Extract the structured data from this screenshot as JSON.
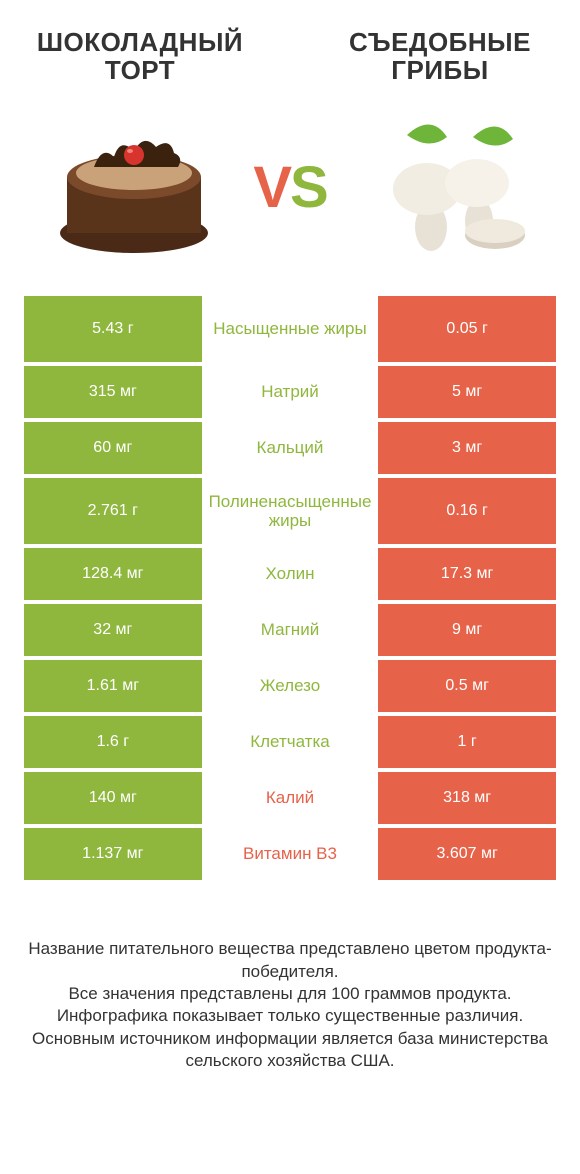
{
  "colors": {
    "green": "#8fb73e",
    "orange": "#e6634a",
    "bg": "#ffffff",
    "text": "#333333"
  },
  "header": {
    "left": "ШОКОЛАДНЫЙ ТОРТ",
    "right": "СЪЕДОБНЫЕ ГРИБЫ",
    "vs_v": "V",
    "vs_s": "S"
  },
  "rows": [
    {
      "left": "5.43 г",
      "label": "Насыщенные жиры",
      "right": "0.05 г",
      "winner": "left",
      "tall": true
    },
    {
      "left": "315 мг",
      "label": "Натрий",
      "right": "5 мг",
      "winner": "left",
      "tall": false
    },
    {
      "left": "60 мг",
      "label": "Кальций",
      "right": "3 мг",
      "winner": "left",
      "tall": false
    },
    {
      "left": "2.761 г",
      "label": "Полиненасыщенные жиры",
      "right": "0.16 г",
      "winner": "left",
      "tall": true
    },
    {
      "left": "128.4 мг",
      "label": "Холин",
      "right": "17.3 мг",
      "winner": "left",
      "tall": false
    },
    {
      "left": "32 мг",
      "label": "Магний",
      "right": "9 мг",
      "winner": "left",
      "tall": false
    },
    {
      "left": "1.61 мг",
      "label": "Железо",
      "right": "0.5 мг",
      "winner": "left",
      "tall": false
    },
    {
      "left": "1.6 г",
      "label": "Клетчатка",
      "right": "1 г",
      "winner": "left",
      "tall": false
    },
    {
      "left": "140 мг",
      "label": "Калий",
      "right": "318 мг",
      "winner": "right",
      "tall": false
    },
    {
      "left": "1.137 мг",
      "label": "Витамин B3",
      "right": "3.607 мг",
      "winner": "right",
      "tall": false
    }
  ],
  "footnote": [
    "Название питательного вещества представлено цветом продукта-победителя.",
    "Все значения представлены для 100 граммов продукта.",
    "Инфографика показывает только существенные различия.",
    "Основным источником информации является база министерства сельского хозяйства США."
  ]
}
